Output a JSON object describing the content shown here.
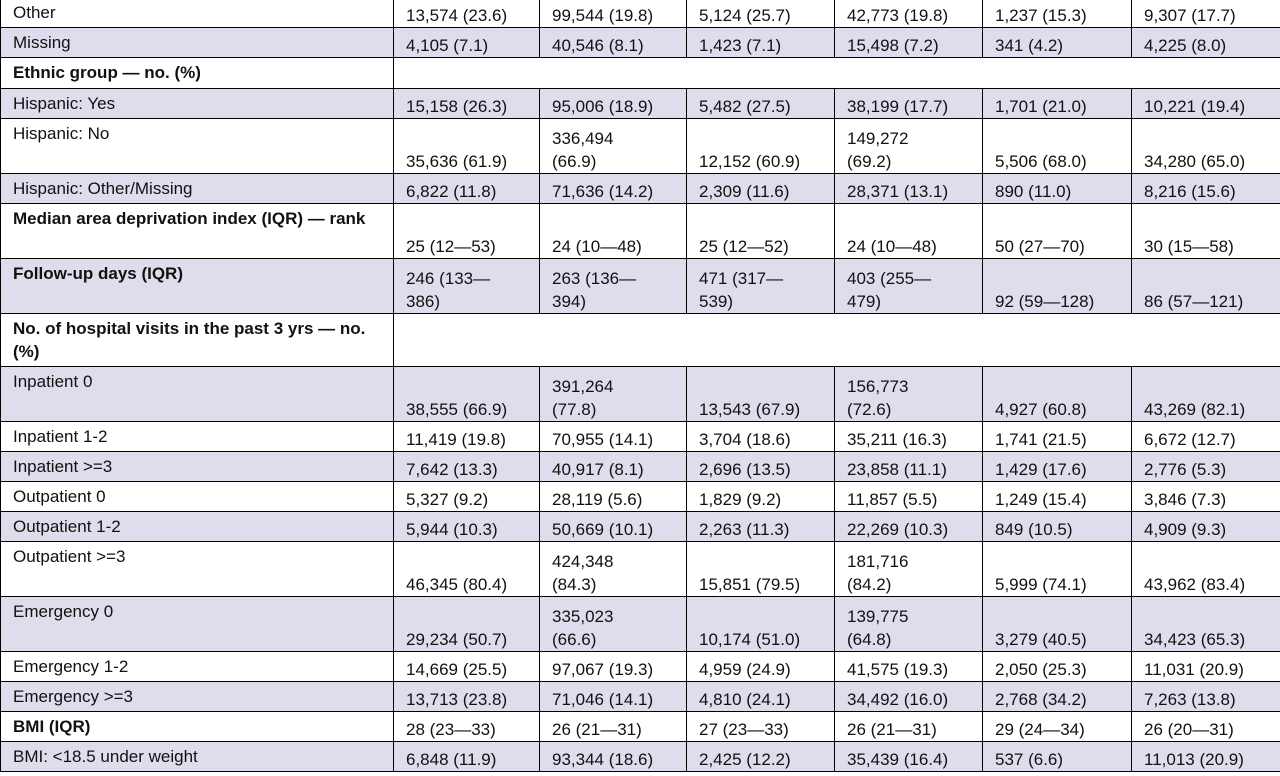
{
  "rows": [
    {
      "label": "Other",
      "shade": false,
      "values": [
        "13,574 (23.6)",
        "99,544 (19.8)",
        "5,124 (25.7)",
        "42,773 (19.8)",
        "1,237 (15.3)",
        "9,307 (17.7)"
      ]
    },
    {
      "label": "Missing",
      "shade": true,
      "values": [
        "4,105 (7.1)",
        "40,546 (8.1)",
        "1,423 (7.1)",
        "15,498 (7.2)",
        "341 (4.2)",
        "4,225 (8.0)"
      ]
    },
    {
      "label": "Ethnic group — no. (%)",
      "header": true
    },
    {
      "label": "Hispanic: Yes",
      "shade": true,
      "values": [
        "15,158 (26.3)",
        "95,006 (18.9)",
        "5,482 (27.5)",
        "38,199 (17.7)",
        "1,701 (21.0)",
        "10,221 (19.4)"
      ]
    },
    {
      "label": "Hispanic: No",
      "shade": false,
      "values": [
        "35,636 (61.9)",
        "336,494 (66.9)",
        "12,152 (60.9)",
        "149,272 (69.2)",
        "5,506 (68.0)",
        "34,280 (65.0)"
      ]
    },
    {
      "label": "Hispanic: Other/Missing",
      "shade": true,
      "values": [
        "6,822 (11.8)",
        "71,636 (14.2)",
        "2,309 (11.6)",
        "28,371 (13.1)",
        "890 (11.0)",
        "8,216 (15.6)"
      ]
    },
    {
      "label": "Median area deprivation index (IQR) — rank",
      "bold": true,
      "shade": false,
      "values": [
        "25 (12—53)",
        "24 (10—48)",
        "25 (12—52)",
        "24 (10—48)",
        "50 (27—70)",
        "30 (15—58)"
      ]
    },
    {
      "label": "Follow-up days (IQR)",
      "bold": true,
      "shade": true,
      "values": [
        "246 (133—386)",
        "263 (136—394)",
        "471 (317—539)",
        "403 (255—479)",
        "92 (59—128)",
        "86 (57—121)"
      ]
    },
    {
      "label": "No. of hospital visits in the past 3 yrs — no. (%)",
      "header": true
    },
    {
      "label": "Inpatient 0",
      "shade": true,
      "values": [
        "38,555 (66.9)",
        "391,264 (77.8)",
        "13,543 (67.9)",
        "156,773 (72.6)",
        "4,927 (60.8)",
        "43,269 (82.1)"
      ]
    },
    {
      "label": "Inpatient 1-2",
      "shade": false,
      "values": [
        "11,419 (19.8)",
        "70,955 (14.1)",
        "3,704 (18.6)",
        "35,211 (16.3)",
        "1,741 (21.5)",
        "6,672 (12.7)"
      ]
    },
    {
      "label": "Inpatient >=3",
      "shade": true,
      "values": [
        "7,642 (13.3)",
        "40,917 (8.1)",
        "2,696 (13.5)",
        "23,858 (11.1)",
        "1,429 (17.6)",
        "2,776 (5.3)"
      ]
    },
    {
      "label": "Outpatient 0",
      "shade": false,
      "values": [
        "5,327 (9.2)",
        "28,119 (5.6)",
        "1,829 (9.2)",
        "11,857 (5.5)",
        "1,249 (15.4)",
        "3,846 (7.3)"
      ]
    },
    {
      "label": "Outpatient 1-2",
      "shade": true,
      "values": [
        "5,944 (10.3)",
        "50,669 (10.1)",
        "2,263 (11.3)",
        "22,269 (10.3)",
        "849 (10.5)",
        "4,909 (9.3)"
      ]
    },
    {
      "label": "Outpatient >=3",
      "shade": false,
      "values": [
        "46,345 (80.4)",
        "424,348 (84.3)",
        "15,851 (79.5)",
        "181,716 (84.2)",
        "5,999 (74.1)",
        "43,962 (83.4)"
      ]
    },
    {
      "label": "Emergency 0",
      "shade": true,
      "values": [
        "29,234 (50.7)",
        "335,023 (66.6)",
        "10,174 (51.0)",
        "139,775 (64.8)",
        "3,279 (40.5)",
        "34,423 (65.3)"
      ]
    },
    {
      "label": "Emergency 1-2",
      "shade": false,
      "values": [
        "14,669 (25.5)",
        "97,067 (19.3)",
        "4,959 (24.9)",
        "41,575 (19.3)",
        "2,050 (25.3)",
        "11,031 (20.9)"
      ]
    },
    {
      "label": "Emergency >=3",
      "shade": true,
      "values": [
        "13,713 (23.8)",
        "71,046 (14.1)",
        "4,810 (24.1)",
        "34,492 (16.0)",
        "2,768 (34.2)",
        "7,263 (13.8)"
      ]
    },
    {
      "label": "BMI (IQR)",
      "bold": true,
      "shade": false,
      "values": [
        "28 (23—33)",
        "26 (21—31)",
        "27 (23—33)",
        "26 (21—31)",
        "29 (24—34)",
        "26 (20—31)"
      ]
    },
    {
      "label": "BMI: <18.5 under weight",
      "shade": true,
      "values": [
        "6,848 (11.9)",
        "93,344 (18.6)",
        "2,425 (12.2)",
        "35,439 (16.4)",
        "537 (6.6)",
        "11,013 (20.9)"
      ]
    }
  ]
}
